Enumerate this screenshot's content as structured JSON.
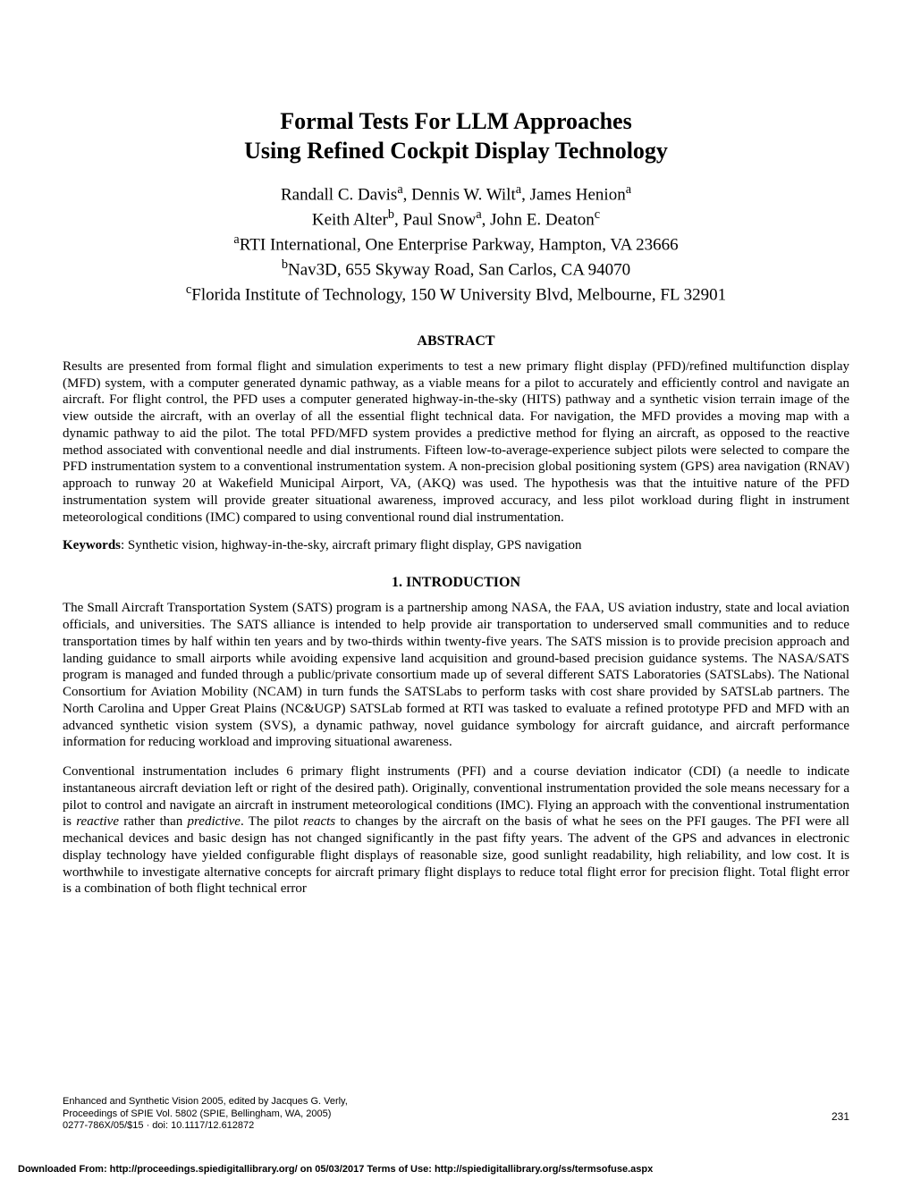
{
  "title_line1": "Formal Tests For LLM Approaches",
  "title_line2": "Using Refined Cockpit Display Technology",
  "authors": {
    "line1_pre": "Randall C. Davis",
    "line1_sup1": "a",
    "line1_mid1": ", Dennis W. Wilt",
    "line1_sup2": "a",
    "line1_mid2": ", James Henion",
    "line1_sup3": "a",
    "line2_pre": "Keith Alter",
    "line2_sup1": "b",
    "line2_mid1": ", Paul Snow",
    "line2_sup2": "a",
    "line2_mid2": ", John E. Deaton",
    "line2_sup3": "c",
    "aff1_sup": "a",
    "aff1": "RTI International, One Enterprise Parkway, Hampton, VA 23666",
    "aff2_sup": "b",
    "aff2": "Nav3D, 655 Skyway Road, San Carlos, CA 94070",
    "aff3_sup": "c",
    "aff3": "Florida Institute of Technology, 150 W University Blvd, Melbourne, FL 32901"
  },
  "abstract_heading": "ABSTRACT",
  "abstract_body": "Results are presented from formal flight and simulation experiments to test a new primary flight display (PFD)/refined multifunction display (MFD) system, with a computer generated dynamic pathway, as a viable means for a pilot to accurately and efficiently control and navigate an aircraft.  For flight control, the PFD uses a computer generated highway-in-the-sky (HITS) pathway and a synthetic vision terrain image of the view outside the aircraft, with an overlay of all the essential flight technical data.  For navigation, the MFD provides a moving map with a dynamic pathway to aid the pilot.  The total PFD/MFD system provides a predictive method for flying an aircraft, as opposed to the reactive method associated with conventional needle and dial instruments.  Fifteen low-to-average-experience subject pilots were selected to compare the PFD instrumentation system to a conventional instrumentation system.  A non-precision global positioning system (GPS) area navigation (RNAV) approach to runway 20 at Wakefield Municipal Airport, VA, (AKQ) was used.  The hypothesis was that the intuitive nature of the PFD instrumentation system will provide greater situational awareness, improved accuracy, and less pilot workload during flight in instrument meteorological conditions (IMC) compared to using conventional round dial instrumentation.",
  "keywords_label": "Keywords",
  "keywords_text": ": Synthetic vision, highway-in-the-sky, aircraft primary flight display, GPS navigation",
  "intro_heading": "1.  INTRODUCTION",
  "intro_p1": "The Small Aircraft Transportation System (SATS) program is a partnership among NASA, the FAA, US aviation industry, state and local aviation officials, and universities.  The SATS alliance is intended to help provide air transportation to underserved small communities and to reduce transportation times by half within ten years and by two-thirds within twenty-five years. The SATS mission is to provide precision approach and landing guidance to small airports while avoiding expensive land acquisition and ground-based precision guidance systems.  The NASA/SATS program is managed and funded through a public/private consortium made up of several different SATS Laboratories (SATSLabs).  The National Consortium for Aviation Mobility (NCAM) in turn funds the SATSLabs to perform tasks with cost share provided by SATSLab partners. The North Carolina and Upper Great Plains (NC&UGP) SATSLab formed at RTI was tasked to evaluate a refined prototype PFD and MFD with an advanced synthetic vision system (SVS), a dynamic pathway, novel guidance symbology for aircraft guidance, and aircraft performance information for reducing workload and improving situational awareness.",
  "intro_p2_a": "Conventional instrumentation includes 6 primary flight instruments (PFI) and a course deviation indicator (CDI) (a needle to indicate instantaneous aircraft deviation left or right of the desired path).  Originally, conventional instrumentation provided the sole means necessary for a pilot to control and navigate an aircraft in instrument meteorological conditions (IMC).  Flying an approach with the conventional instrumentation is ",
  "intro_p2_reactive": "reactive",
  "intro_p2_b": " rather than ",
  "intro_p2_predictive": "predictive",
  "intro_p2_c": ".  The pilot ",
  "intro_p2_reacts": "reacts",
  "intro_p2_d": " to changes by the aircraft on the basis of what he sees on the PFI gauges. The PFI were all mechanical devices and basic design has not changed significantly in the past fifty years.  The advent of the GPS and advances in electronic display technology have yielded configurable flight displays of reasonable size, good sunlight readability, high reliability, and low cost.  It is worthwhile to investigate alternative concepts for aircraft primary flight displays to reduce total flight error for precision flight.  Total flight error is a combination of both flight technical error",
  "footer_line1": "Enhanced and Synthetic Vision 2005, edited by Jacques G. Verly,",
  "footer_line2": "Proceedings of SPIE Vol. 5802 (SPIE, Bellingham, WA, 2005)",
  "footer_line3": "0277-786X/05/$15 · doi: 10.1117/12.612872",
  "page_number": "231",
  "download_line": "Downloaded From: http://proceedings.spiedigitallibrary.org/ on 05/03/2017 Terms of Use: http://spiedigitallibrary.org/ss/termsofuse.aspx"
}
